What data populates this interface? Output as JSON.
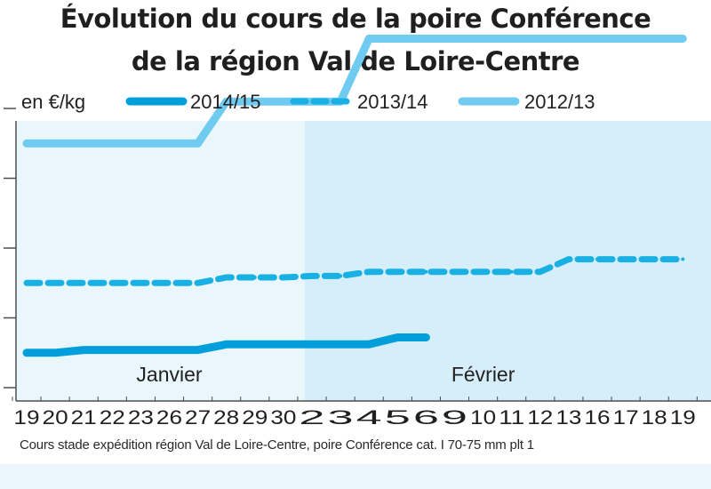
{
  "title_line1": "Évolution du cours de la poire Conférence",
  "title_line2": "de la région Val de Loire-Centre",
  "footnote": "Cours stade expédition région Val de Loire-Centre, poire Conférence cat. I 70-75 mm plt 1",
  "colors": {
    "s2014": "#009fdb",
    "s2013": "#19b1e4",
    "s2012": "#6fcbef",
    "plot_bg_left": "#e9f6fc",
    "plot_bg_right": "#d6eef9",
    "axis": "#4d4d4d"
  },
  "chart_data": {
    "type": "line",
    "ylabel": "en €/kg",
    "legend_position": "top",
    "categories": [
      "19",
      "20",
      "21",
      "22",
      "23",
      "26",
      "27",
      "28",
      "29",
      "30",
      "2",
      "3",
      "4",
      "5",
      "6",
      "9",
      "10",
      "11",
      "12",
      "13",
      "16",
      "17",
      "18",
      "19"
    ],
    "month_labels": [
      {
        "label": "Janvier",
        "index": 5
      },
      {
        "label": "Février",
        "index": 16
      }
    ],
    "grid": false,
    "series": [
      {
        "name": "2014/15",
        "style": "solid",
        "values": [
          0.25,
          0.25,
          0.27,
          0.27,
          0.27,
          0.27,
          0.27,
          0.31,
          0.31,
          0.31,
          0.31,
          0.31,
          0.31,
          0.36,
          0.36,
          null,
          null,
          null,
          null,
          null,
          null,
          null,
          null,
          null
        ]
      },
      {
        "name": "2013/14",
        "style": "dashed",
        "values": [
          0.75,
          0.75,
          0.75,
          0.75,
          0.75,
          0.75,
          0.75,
          0.79,
          0.79,
          0.79,
          0.8,
          0.8,
          0.83,
          0.83,
          0.83,
          0.83,
          0.83,
          0.83,
          0.83,
          0.92,
          0.92,
          0.92,
          0.92,
          0.92
        ]
      },
      {
        "name": "2012/13",
        "style": "solid",
        "values": [
          1.75,
          1.75,
          1.75,
          1.75,
          1.75,
          1.75,
          1.75,
          2.05,
          2.05,
          2.05,
          2.05,
          2.05,
          2.5,
          2.5,
          2.5,
          2.5,
          2.5,
          2.5,
          2.5,
          2.5,
          2.5,
          2.5,
          2.5,
          2.5
        ]
      }
    ]
  }
}
